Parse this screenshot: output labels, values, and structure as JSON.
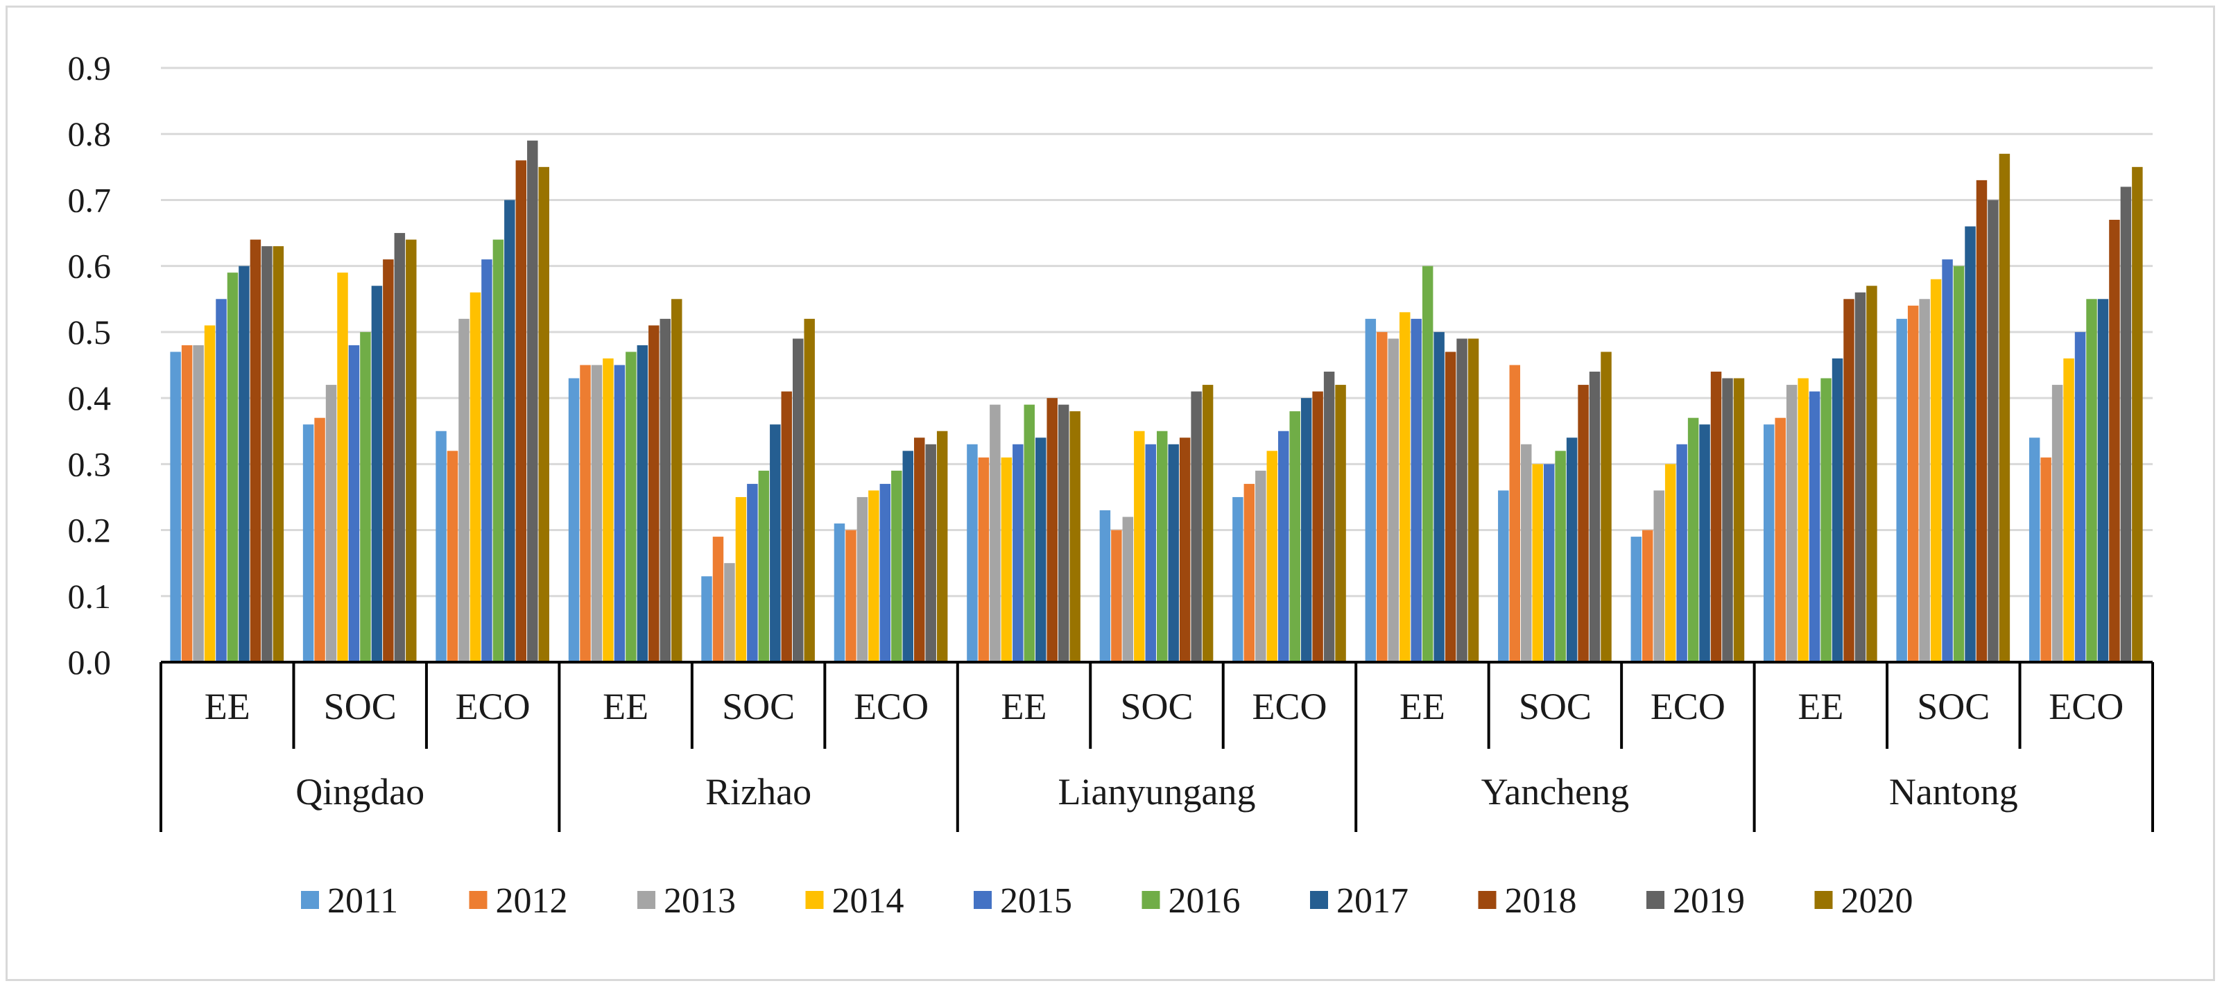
{
  "chart_data": {
    "type": "bar",
    "title": "",
    "xlabel": "",
    "ylabel": "",
    "ylim": [
      0,
      0.9
    ],
    "yticks": [
      "0.0",
      "0.1",
      "0.2",
      "0.3",
      "0.4",
      "0.5",
      "0.6",
      "0.7",
      "0.8",
      "0.9"
    ],
    "grid": true,
    "legend_position": "bottom",
    "cities": [
      "Qingdao",
      "Rizhao",
      "Lianyungang",
      "Yancheng",
      "Nantong"
    ],
    "indicators": [
      "EE",
      "SOC",
      "ECO"
    ],
    "categories": [
      "Qingdao EE",
      "Qingdao SOC",
      "Qingdao ECO",
      "Rizhao EE",
      "Rizhao SOC",
      "Rizhao ECO",
      "Lianyungang EE",
      "Lianyungang SOC",
      "Lianyungang ECO",
      "Yancheng EE",
      "Yancheng SOC",
      "Yancheng ECO",
      "Nantong EE",
      "Nantong SOC",
      "Nantong ECO"
    ],
    "series": [
      {
        "name": "2011",
        "color": "#5b9bd5",
        "values": [
          0.47,
          0.36,
          0.35,
          0.43,
          0.13,
          0.21,
          0.33,
          0.23,
          0.25,
          0.52,
          0.26,
          0.19,
          0.36,
          0.52,
          0.34
        ]
      },
      {
        "name": "2012",
        "color": "#ed7d31",
        "values": [
          0.48,
          0.37,
          0.32,
          0.45,
          0.19,
          0.2,
          0.31,
          0.2,
          0.27,
          0.5,
          0.45,
          0.2,
          0.37,
          0.54,
          0.31
        ]
      },
      {
        "name": "2013",
        "color": "#a5a5a5",
        "values": [
          0.48,
          0.42,
          0.52,
          0.45,
          0.15,
          0.25,
          0.39,
          0.22,
          0.29,
          0.49,
          0.33,
          0.26,
          0.42,
          0.55,
          0.42
        ]
      },
      {
        "name": "2014",
        "color": "#ffc000",
        "values": [
          0.51,
          0.59,
          0.56,
          0.46,
          0.25,
          0.26,
          0.31,
          0.35,
          0.32,
          0.53,
          0.3,
          0.3,
          0.43,
          0.58,
          0.46
        ]
      },
      {
        "name": "2015",
        "color": "#4472c4",
        "values": [
          0.55,
          0.48,
          0.61,
          0.45,
          0.27,
          0.27,
          0.33,
          0.33,
          0.35,
          0.52,
          0.3,
          0.33,
          0.41,
          0.61,
          0.5
        ]
      },
      {
        "name": "2016",
        "color": "#70ad47",
        "values": [
          0.59,
          0.5,
          0.64,
          0.47,
          0.29,
          0.29,
          0.39,
          0.35,
          0.38,
          0.6,
          0.32,
          0.37,
          0.43,
          0.6,
          0.55
        ]
      },
      {
        "name": "2017",
        "color": "#255e91",
        "values": [
          0.6,
          0.57,
          0.7,
          0.48,
          0.36,
          0.32,
          0.34,
          0.33,
          0.4,
          0.5,
          0.34,
          0.36,
          0.46,
          0.66,
          0.55
        ]
      },
      {
        "name": "2018",
        "color": "#9e480e",
        "values": [
          0.64,
          0.61,
          0.76,
          0.51,
          0.41,
          0.34,
          0.4,
          0.34,
          0.41,
          0.47,
          0.42,
          0.44,
          0.55,
          0.73,
          0.67
        ]
      },
      {
        "name": "2019",
        "color": "#636363",
        "values": [
          0.63,
          0.65,
          0.79,
          0.52,
          0.49,
          0.33,
          0.39,
          0.41,
          0.44,
          0.49,
          0.44,
          0.43,
          0.56,
          0.7,
          0.72
        ]
      },
      {
        "name": "2020",
        "color": "#997300",
        "values": [
          0.63,
          0.64,
          0.75,
          0.55,
          0.52,
          0.35,
          0.38,
          0.42,
          0.42,
          0.49,
          0.47,
          0.43,
          0.57,
          0.77,
          0.75
        ]
      }
    ]
  }
}
